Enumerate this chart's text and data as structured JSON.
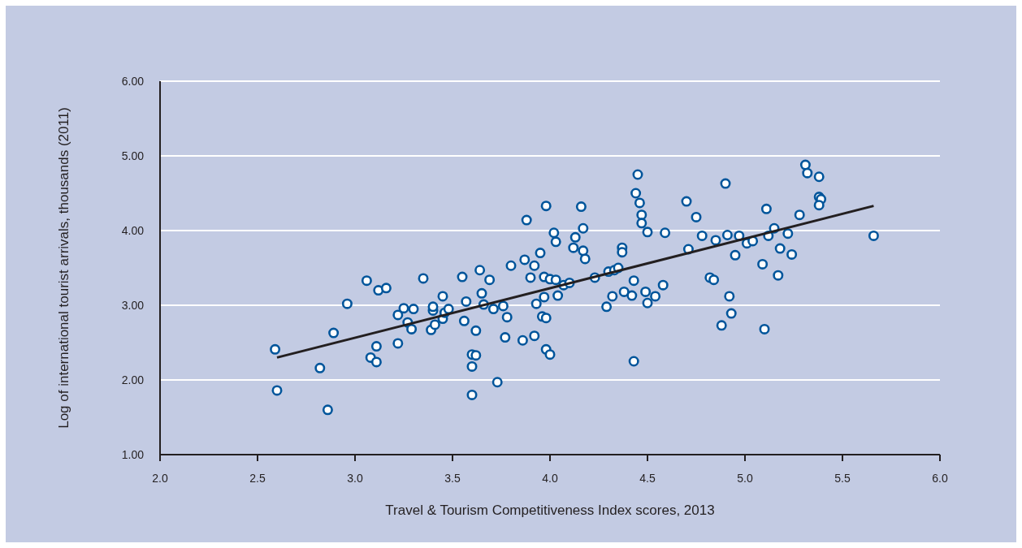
{
  "chart_data": {
    "type": "scatter",
    "xlabel": "Travel & Tourism Competitiveness Index scores, 2013",
    "ylabel": "Log of international tourist arrivals, thousands (2011)",
    "xlim": [
      2.0,
      6.0
    ],
    "ylim": [
      1.0,
      6.0
    ],
    "xticks": [
      {
        "value": 2.0,
        "label": "2.0"
      },
      {
        "value": 2.5,
        "label": "2.5"
      },
      {
        "value": 3.0,
        "label": "3.0"
      },
      {
        "value": 3.5,
        "label": "3.5"
      },
      {
        "value": 4.0,
        "label": "4.0"
      },
      {
        "value": 4.5,
        "label": "4.5"
      },
      {
        "value": 5.0,
        "label": "5.0"
      },
      {
        "value": 5.5,
        "label": "5.5"
      },
      {
        "value": 6.0,
        "label": "6.0"
      }
    ],
    "yticks": [
      {
        "value": 1.0,
        "label": "1.00"
      },
      {
        "value": 2.0,
        "label": "2.00"
      },
      {
        "value": 3.0,
        "label": "3.00"
      },
      {
        "value": 4.0,
        "label": "4.00"
      },
      {
        "value": 5.0,
        "label": "5.00"
      },
      {
        "value": 6.0,
        "label": "6.00"
      }
    ],
    "grid": "y",
    "marker": "circle",
    "series": [
      {
        "color": "#00559b",
        "x": [
          2.59,
          2.6,
          2.82,
          2.86,
          2.89,
          2.96,
          3.06,
          3.08,
          3.11,
          3.11,
          3.12,
          3.16,
          3.22,
          3.22,
          3.25,
          3.27,
          3.29,
          3.3,
          3.35,
          3.4,
          3.4,
          3.39,
          3.41,
          3.45,
          3.45,
          3.46,
          3.48,
          3.55,
          3.56,
          3.57,
          3.6,
          3.6,
          3.6,
          3.62,
          3.62,
          3.64,
          3.65,
          3.66,
          3.69,
          3.71,
          3.73,
          3.76,
          3.77,
          3.78,
          3.8,
          3.86,
          3.87,
          3.88,
          3.9,
          3.92,
          3.92,
          3.93,
          3.95,
          3.96,
          3.97,
          3.98,
          3.98,
          3.98,
          3.97,
          4.0,
          4.0,
          4.02,
          4.03,
          4.03,
          4.04,
          4.07,
          4.1,
          4.12,
          4.13,
          4.16,
          4.17,
          4.17,
          4.18,
          4.23,
          4.29,
          4.3,
          4.32,
          4.33,
          4.35,
          4.37,
          4.37,
          4.38,
          4.42,
          4.43,
          4.43,
          4.45,
          4.44,
          4.46,
          4.47,
          4.47,
          4.49,
          4.5,
          4.5,
          4.54,
          4.58,
          4.59,
          4.7,
          4.71,
          4.75,
          4.78,
          4.82,
          4.84,
          4.85,
          4.88,
          4.9,
          4.91,
          4.92,
          4.93,
          4.95,
          4.97,
          5.01,
          5.04,
          5.09,
          5.1,
          5.11,
          5.12,
          5.15,
          5.17,
          5.18,
          5.22,
          5.24,
          5.28,
          5.31,
          5.32,
          5.38,
          5.38,
          5.39,
          5.38,
          5.66
        ],
        "values": [
          2.41,
          1.86,
          2.16,
          1.6,
          2.63,
          3.02,
          3.33,
          2.3,
          2.24,
          2.45,
          3.2,
          3.23,
          2.87,
          2.49,
          2.96,
          2.77,
          2.68,
          2.95,
          3.36,
          2.93,
          2.98,
          2.67,
          2.74,
          2.82,
          3.12,
          2.9,
          2.95,
          3.38,
          2.79,
          3.05,
          2.18,
          2.34,
          1.8,
          2.33,
          2.66,
          3.47,
          3.16,
          3.01,
          3.34,
          2.95,
          1.97,
          2.99,
          2.57,
          2.84,
          3.53,
          2.53,
          3.61,
          4.14,
          3.37,
          2.59,
          3.53,
          3.02,
          3.7,
          2.85,
          3.38,
          4.33,
          2.41,
          2.83,
          3.11,
          3.35,
          2.34,
          3.97,
          3.85,
          3.34,
          3.13,
          3.27,
          3.3,
          3.77,
          3.91,
          4.32,
          4.03,
          3.73,
          3.62,
          3.37,
          2.98,
          3.45,
          3.12,
          3.47,
          3.5,
          3.77,
          3.71,
          3.18,
          3.13,
          3.33,
          2.25,
          4.75,
          4.5,
          4.37,
          4.21,
          4.1,
          3.18,
          3.03,
          3.98,
          3.12,
          3.27,
          3.97,
          4.39,
          3.75,
          4.18,
          3.93,
          3.37,
          3.34,
          3.87,
          2.73,
          4.63,
          3.94,
          3.12,
          2.89,
          3.67,
          3.93,
          3.83,
          3.86,
          3.55,
          2.68,
          4.29,
          3.93,
          4.03,
          3.4,
          3.76,
          3.96,
          3.68,
          4.21,
          4.88,
          4.77,
          4.72,
          4.45,
          4.42,
          4.34,
          3.93
        ]
      },
      {
        "type": "line",
        "color": "#231f20",
        "marker": "none",
        "x": [
          2.6,
          5.66
        ],
        "values": [
          2.3,
          4.33
        ]
      }
    ]
  }
}
